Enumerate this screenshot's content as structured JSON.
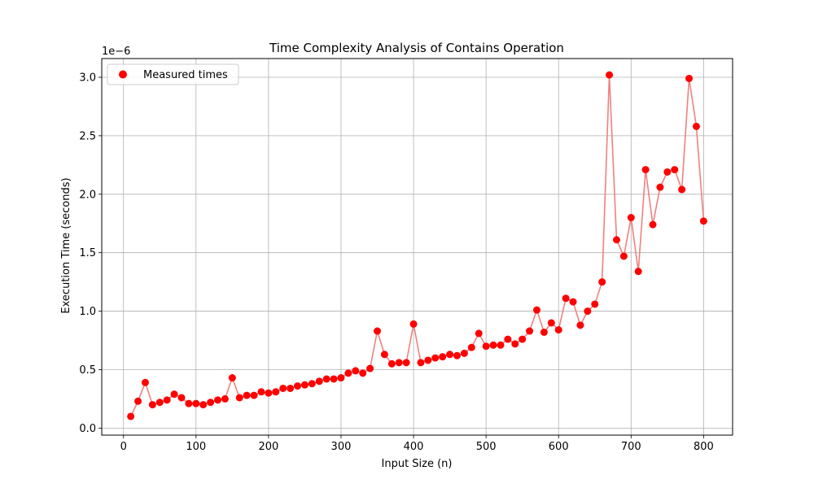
{
  "chart_data": {
    "type": "scatter",
    "title": "Time Complexity Analysis of Contains Operation",
    "xlabel": "Input Size (n)",
    "ylabel": "Execution Time (seconds)",
    "y_offset_label": "1e−6",
    "xlim": [
      -30,
      840
    ],
    "ylim": [
      -0.06,
      3.16
    ],
    "xticks": [
      0,
      100,
      200,
      300,
      400,
      500,
      600,
      700,
      800
    ],
    "xtick_labels": [
      "0",
      "100",
      "200",
      "300",
      "400",
      "500",
      "600",
      "700",
      "800"
    ],
    "yticks": [
      0.0,
      0.5,
      1.0,
      1.5,
      2.0,
      2.5,
      3.0
    ],
    "ytick_labels": [
      "0.0",
      "0.5",
      "1.0",
      "1.5",
      "2.0",
      "2.5",
      "3.0"
    ],
    "grid": true,
    "legend_position": "top-left",
    "series": [
      {
        "name": "Measured times",
        "marker_color": "#ff0000",
        "line_color": "#f08080",
        "x": [
          10,
          20,
          30,
          40,
          50,
          60,
          70,
          80,
          90,
          100,
          110,
          120,
          130,
          140,
          150,
          160,
          170,
          180,
          190,
          200,
          210,
          220,
          230,
          240,
          250,
          260,
          270,
          280,
          290,
          300,
          310,
          320,
          330,
          340,
          350,
          360,
          370,
          380,
          390,
          400,
          410,
          420,
          430,
          440,
          450,
          460,
          470,
          480,
          490,
          500,
          510,
          520,
          530,
          540,
          550,
          560,
          570,
          580,
          590,
          600,
          610,
          620,
          630,
          640,
          650,
          660,
          670,
          680,
          690,
          700,
          710,
          720,
          730,
          740,
          750,
          760,
          770,
          780,
          790,
          800
        ],
        "y": [
          0.1,
          0.23,
          0.39,
          0.2,
          0.22,
          0.24,
          0.29,
          0.26,
          0.21,
          0.21,
          0.2,
          0.22,
          0.24,
          0.25,
          0.43,
          0.26,
          0.28,
          0.28,
          0.31,
          0.3,
          0.31,
          0.34,
          0.34,
          0.36,
          0.37,
          0.38,
          0.4,
          0.42,
          0.42,
          0.43,
          0.47,
          0.49,
          0.47,
          0.51,
          0.83,
          0.63,
          0.55,
          0.56,
          0.56,
          0.89,
          0.56,
          0.58,
          0.6,
          0.61,
          0.63,
          0.62,
          0.64,
          0.69,
          0.81,
          0.7,
          0.71,
          0.71,
          0.76,
          0.72,
          0.76,
          0.83,
          1.01,
          0.82,
          0.9,
          0.84,
          1.11,
          1.08,
          0.88,
          1.0,
          1.06,
          1.25,
          3.02,
          1.61,
          1.47,
          1.8,
          1.34,
          2.21,
          1.74,
          2.06,
          2.19,
          2.21,
          2.04,
          2.99,
          2.58,
          1.77
        ]
      }
    ]
  }
}
